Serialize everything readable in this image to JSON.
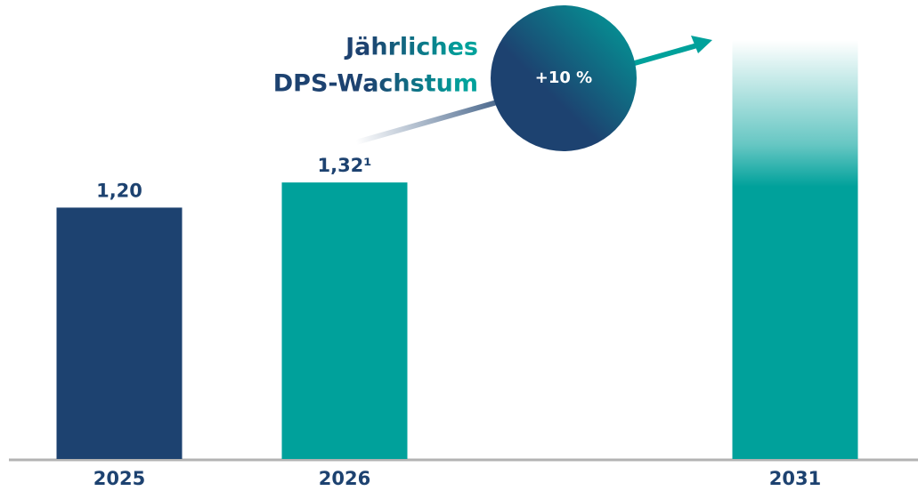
{
  "chart_data": {
    "type": "bar",
    "categories": [
      "2025",
      "2026",
      "2031"
    ],
    "values": [
      1.2,
      1.32,
      2.0
    ],
    "value_labels": [
      "1,20",
      "1,32¹",
      null
    ],
    "colors": [
      "#1d4270",
      "#00a19b",
      "#00a19b"
    ],
    "annotation": [
      "Jährliches",
      "DPS-Wachstum"
    ],
    "growth_label": "+10 %"
  }
}
